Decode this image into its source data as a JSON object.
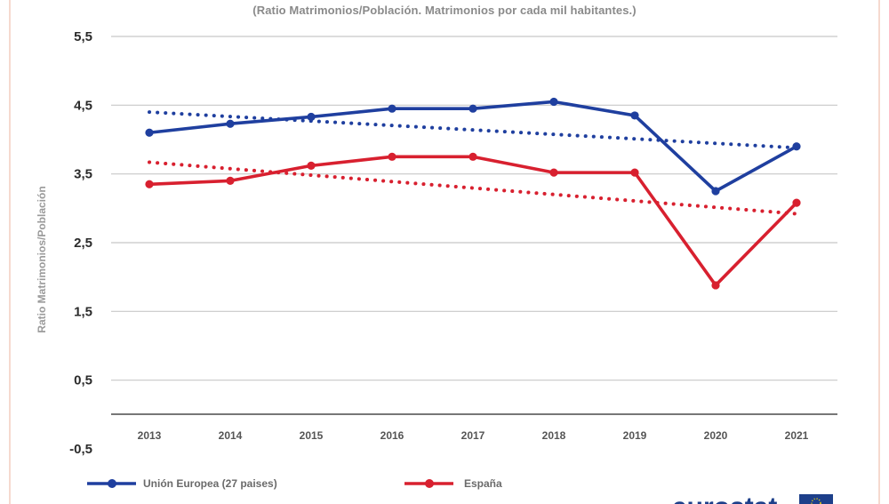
{
  "subtitle": "(Ratio Matrimonios/Población. Matrimonios por cada mil habitantes.)",
  "logo_text": "eurostat",
  "colors": {
    "eu": "#1f3f9f",
    "es": "#d8202f",
    "grid": "#c8c8c8",
    "logo": "#1d3f8a",
    "flag": "#1d3f8a",
    "flag_star": "#ffdd00"
  },
  "chart_data": {
    "type": "line",
    "title": "",
    "subtitle": "(Ratio Matrimonios/Población. Matrimonios por cada mil habitantes.)",
    "ylabel": "Ratio Matrimonios/Población",
    "xlabel": "",
    "ylim": [
      -0.5,
      5.5
    ],
    "y_ticks": [
      "5,5",
      "4,5",
      "3,5",
      "2,5",
      "1,5",
      "0,5",
      "-0,5"
    ],
    "y_tick_values": [
      5.5,
      4.5,
      3.5,
      2.5,
      1.5,
      0.5,
      -0.5
    ],
    "categories": [
      "2013",
      "2014",
      "2015",
      "2016",
      "2017",
      "2018",
      "2019",
      "2020",
      "2021"
    ],
    "grid": true,
    "legend_position": "bottom",
    "series": [
      {
        "name": "Unión Europea (27 paises)",
        "color": "#1f3f9f",
        "values": [
          4.1,
          4.23,
          4.33,
          4.45,
          4.45,
          4.55,
          4.35,
          3.25,
          3.9
        ],
        "trend": [
          4.4,
          3.88
        ]
      },
      {
        "name": "España",
        "color": "#d8202f",
        "values": [
          3.35,
          3.4,
          3.62,
          3.75,
          3.75,
          3.52,
          3.52,
          1.88,
          3.08
        ],
        "trend": [
          3.67,
          2.92
        ]
      }
    ]
  }
}
